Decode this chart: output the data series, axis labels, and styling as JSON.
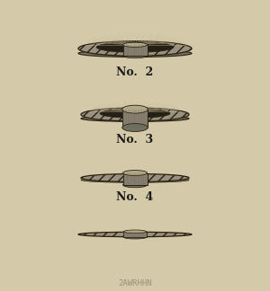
{
  "background_color": "#d4c9a8",
  "text_color": "#1a1a1a",
  "label_fontsize": 9,
  "labels": [
    "No.  2",
    "No.  3",
    "No.  4"
  ],
  "wheel_colors": {
    "outer_fill": "#9a9080",
    "inner_dark": "#252015",
    "hub_fill": "#8a8070",
    "hub_light": "#b0a888",
    "hub_dark": "#707060",
    "base_fill": "#7a7060",
    "line_light": "#c8bc98",
    "line_dark": "#606050",
    "edge_dark": "#2a2010"
  },
  "fig_width": 3.0,
  "fig_height": 3.24,
  "dpi": 100
}
